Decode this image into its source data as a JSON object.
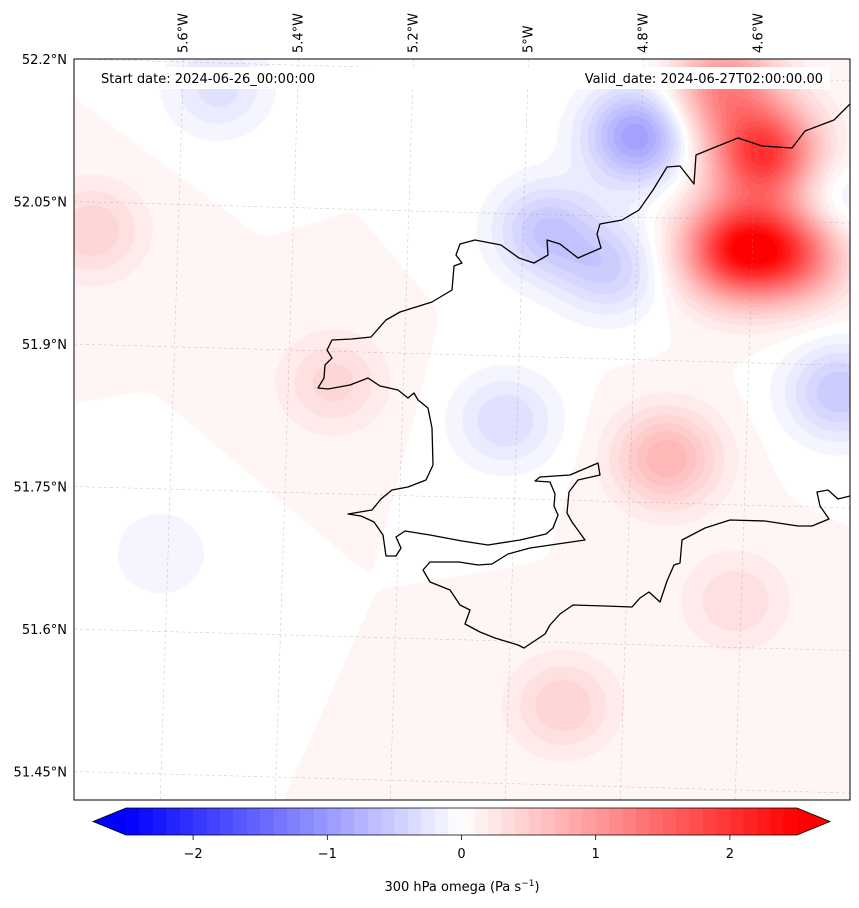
{
  "chart_data": {
    "type": "heatmap",
    "variable_label": "300 hPa omega (Pa s",
    "units_superscript": "−1",
    "units_suffix": ")",
    "start_date_text": "Start date: 2024-06-26_00:00:00",
    "valid_date_text": "Valid_date: 2024-06-27T02:00:00.00",
    "x_axis": {
      "range_deg": [
        -5.75,
        -4.4
      ],
      "ticks": [
        {
          "value": -5.6,
          "label": "5.6°W"
        },
        {
          "value": -5.4,
          "label": "5.4°W"
        },
        {
          "value": -5.2,
          "label": "5.2°W"
        },
        {
          "value": -5.0,
          "label": "5°W"
        },
        {
          "value": -4.8,
          "label": "4.8°W"
        },
        {
          "value": -4.6,
          "label": "4.6°W"
        }
      ]
    },
    "y_axis": {
      "range_deg": [
        51.42,
        52.2
      ],
      "ticks": [
        {
          "value": 52.2,
          "label": "52.2°N"
        },
        {
          "value": 52.05,
          "label": "52.05°N"
        },
        {
          "value": 51.9,
          "label": "51.9°N"
        },
        {
          "value": 51.75,
          "label": "51.75°N"
        },
        {
          "value": 51.6,
          "label": "51.6°N"
        },
        {
          "value": 51.45,
          "label": "51.45°N"
        }
      ]
    },
    "colorbar": {
      "range": [
        -2.5,
        2.5
      ],
      "ticks": [
        {
          "value": -2,
          "label": "−2"
        },
        {
          "value": -1,
          "label": "−1"
        },
        {
          "value": 0,
          "label": "0"
        },
        {
          "value": 1,
          "label": "1"
        },
        {
          "value": 2,
          "label": "2"
        }
      ],
      "extend": "both",
      "cmap": "bwr"
    },
    "features": [
      {
        "name": "ne-upper-max",
        "lon": -4.55,
        "lat": 52.1,
        "value": 1.9
      },
      {
        "name": "ne-north-max",
        "lon": -4.62,
        "lat": 52.17,
        "value": 1.1
      },
      {
        "name": "east-max",
        "lon": -4.6,
        "lat": 52.0,
        "value": 2.0
      },
      {
        "name": "east-max-b",
        "lon": -4.5,
        "lat": 52.0,
        "value": 1.6
      },
      {
        "name": "north-min",
        "lon": -4.77,
        "lat": 52.12,
        "value": -1.0
      },
      {
        "name": "channel-min",
        "lon": -4.93,
        "lat": 52.02,
        "value": -0.6
      },
      {
        "name": "channel-min-b",
        "lon": -4.82,
        "lat": 51.98,
        "value": -0.5
      },
      {
        "name": "nw-min",
        "lon": -5.5,
        "lat": 52.17,
        "value": -0.35
      },
      {
        "name": "east-edge-min",
        "lon": -4.42,
        "lat": 51.85,
        "value": -0.6
      },
      {
        "name": "ne-edge-min",
        "lon": -4.45,
        "lat": 52.04,
        "value": -0.5
      },
      {
        "name": "inland-min",
        "lon": -5.0,
        "lat": 51.82,
        "value": -0.4
      },
      {
        "name": "west-max",
        "lon": -5.72,
        "lat": 52.02,
        "value": 0.4
      },
      {
        "name": "central-max",
        "lon": -5.3,
        "lat": 51.86,
        "value": 0.35
      },
      {
        "name": "inland-max",
        "lon": -4.72,
        "lat": 51.78,
        "value": 0.7
      },
      {
        "name": "south-max",
        "lon": -4.9,
        "lat": 51.52,
        "value": 0.4
      },
      {
        "name": "sw-min",
        "lon": -5.6,
        "lat": 51.68,
        "value": -0.2
      },
      {
        "name": "south-max-b",
        "lon": -4.6,
        "lat": 51.63,
        "value": 0.3
      }
    ]
  }
}
